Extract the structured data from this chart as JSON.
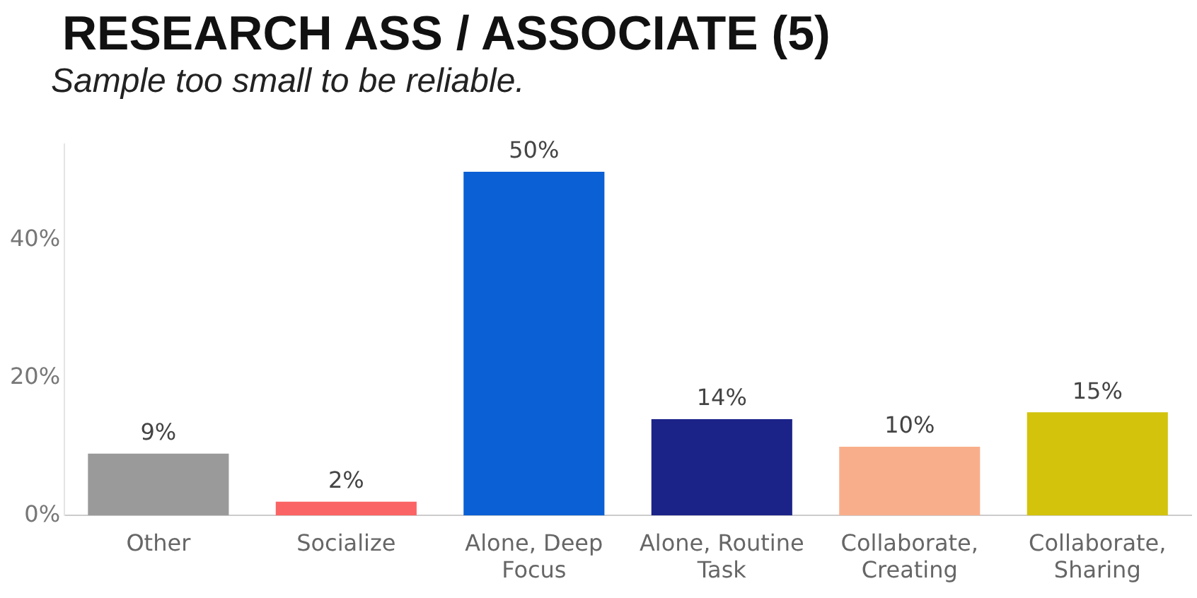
{
  "chart_data": {
    "type": "bar",
    "title": "RESEARCH ASS / ASSOCIATE (5)",
    "subtitle": "Sample too small to be reliable.",
    "categories": [
      "Other",
      "Socialize",
      "Alone, Deep Focus",
      "Alone, Routine Task",
      "Collaborate, Creating",
      "Collaborate, Sharing"
    ],
    "values": [
      9,
      2,
      50,
      14,
      10,
      15
    ],
    "colors": [
      "#9a9a9a",
      "#fb6464",
      "#0a60d4",
      "#1b2288",
      "#f9ae8b",
      "#d3c30c"
    ],
    "ylim": [
      0,
      54
    ],
    "yticks": [
      {
        "value": 0,
        "label": "0%"
      },
      {
        "value": 20,
        "label": "20%"
      },
      {
        "value": 40,
        "label": "40%"
      }
    ],
    "value_labels": [
      "9%",
      "2%",
      "50%",
      "14%",
      "10%",
      "15%"
    ],
    "grid": false,
    "legend": false
  }
}
